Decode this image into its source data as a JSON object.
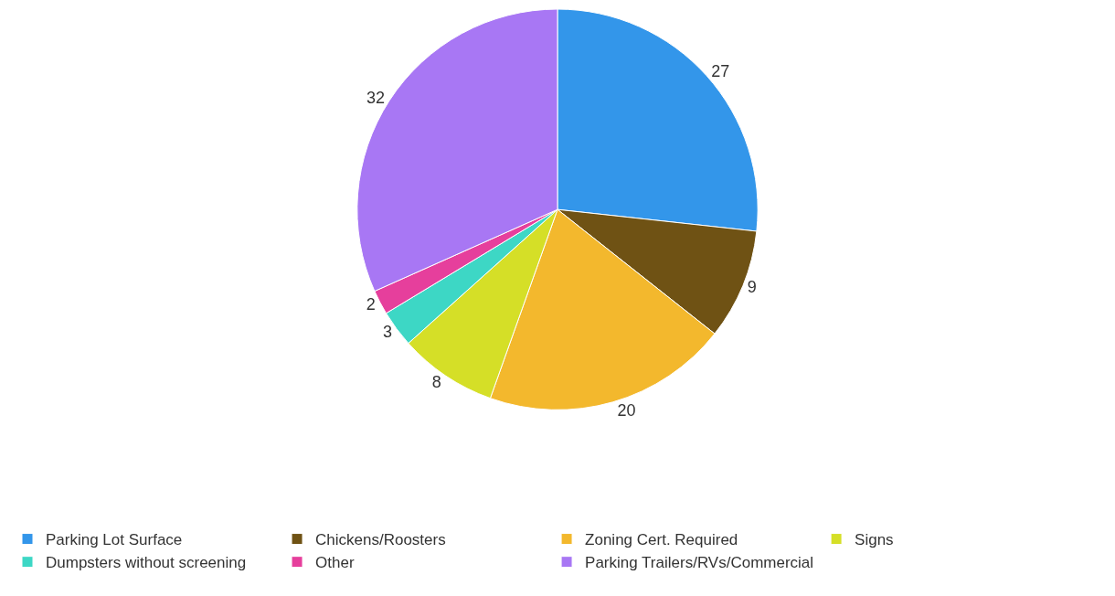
{
  "chart_data": {
    "type": "pie",
    "categories": [
      "Parking Lot Surface",
      "Chickens/Roosters",
      "Zoning Cert. Required",
      "Signs",
      "Dumpsters without screening",
      "Other",
      "Parking Trailers/RVs/Commercial"
    ],
    "values": [
      27,
      9,
      20,
      8,
      3,
      2,
      32
    ],
    "colors": [
      "#3396ea",
      "#6f5214",
      "#f3b82d",
      "#d5df27",
      "#3dd7c5",
      "#e63f9c",
      "#a877f4"
    ],
    "data_labels": true,
    "legend": "bottom"
  }
}
